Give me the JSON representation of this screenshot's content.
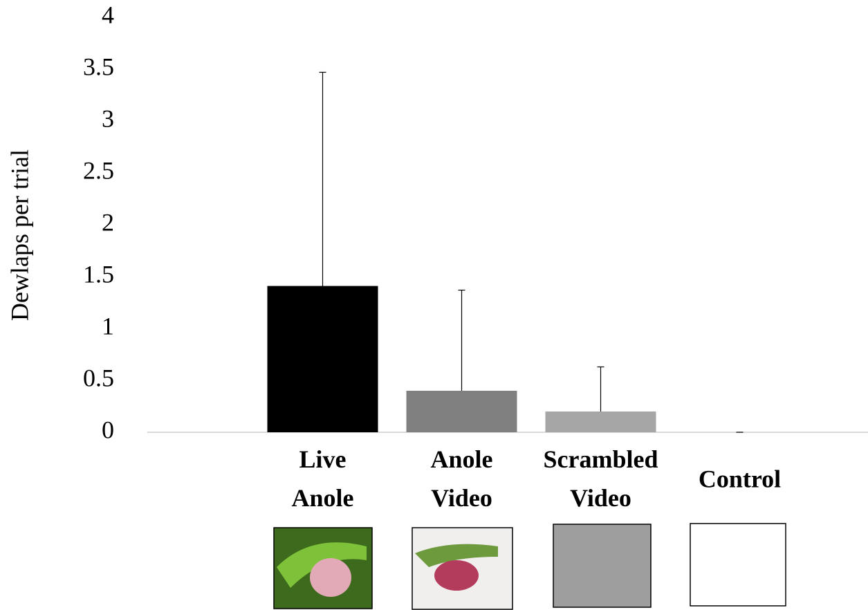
{
  "chart_data": {
    "type": "bar",
    "y_label": "Dewlaps per trial",
    "categories": [
      "Live Anole",
      "Anole Video",
      "Scrambled Video",
      "Control"
    ],
    "values": [
      1.41,
      0.4,
      0.2,
      0
    ],
    "errors": [
      2.06,
      0.97,
      0.43,
      0
    ],
    "colors": [
      "#000000",
      "#808080",
      "#a6a6a6",
      "#ffffff"
    ],
    "ylim": [
      0,
      4
    ],
    "yticks": [
      0,
      0.5,
      1,
      1.5,
      2,
      2.5,
      3,
      3.5,
      4
    ],
    "grid": false
  }
}
